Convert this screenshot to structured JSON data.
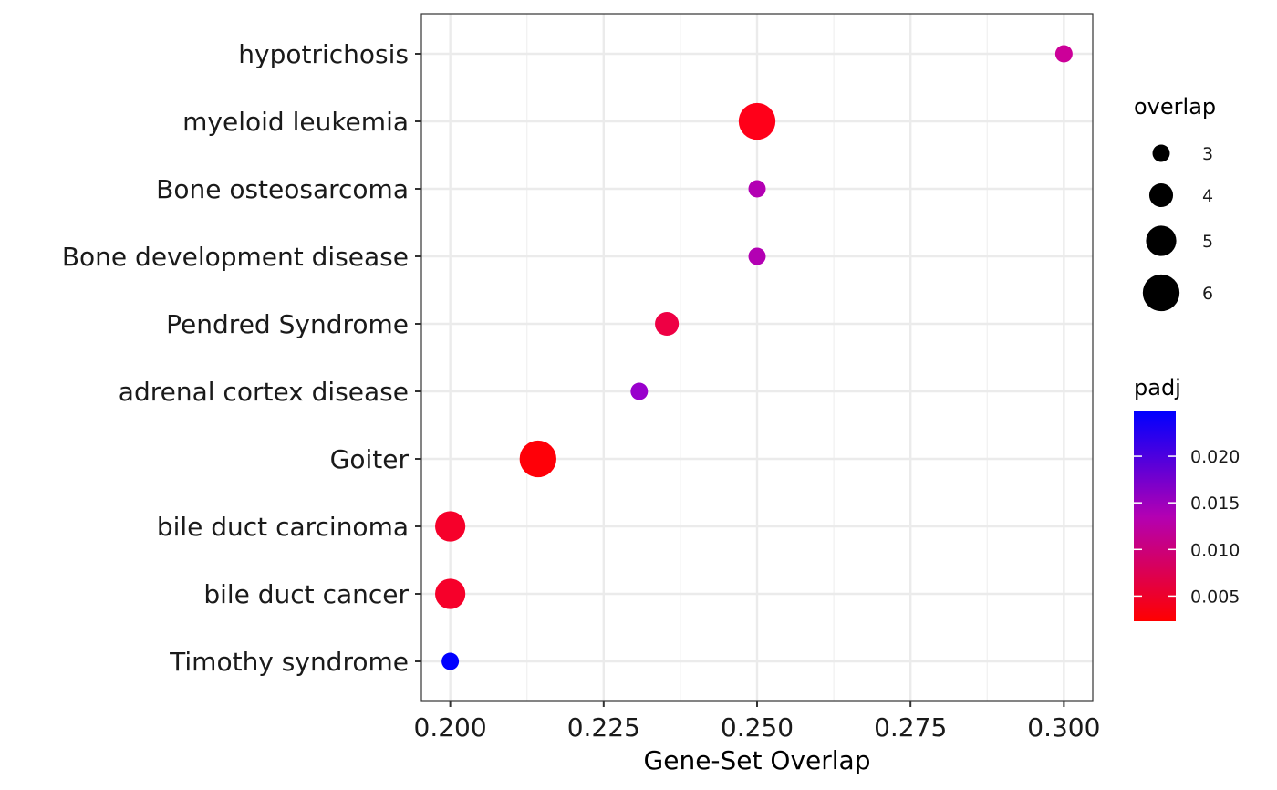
{
  "chart_data": {
    "type": "scatter",
    "xlabel": "Gene-Set Overlap",
    "ylabel": "",
    "xlim": [
      0.1953,
      0.3047
    ],
    "xticks": [
      0.2,
      0.225,
      0.25,
      0.275,
      0.3
    ],
    "xtick_labels": [
      "0.200",
      "0.225",
      "0.250",
      "0.275",
      "0.300"
    ],
    "grid": true,
    "categories": [
      "hypotrichosis",
      "myeloid leukemia",
      "Bone osteosarcoma",
      "Bone development disease",
      "Pendred Syndrome",
      "adrenal cortex disease",
      "Goiter",
      "bile duct carcinoma",
      "bile duct cancer",
      "Timothy syndrome"
    ],
    "points": [
      {
        "term": "hypotrichosis",
        "x": 0.3,
        "overlap": 3,
        "padj": 0.0125,
        "color": "#cc0099"
      },
      {
        "term": "myeloid leukemia",
        "x": 0.25,
        "overlap": 6,
        "padj": 0.0012,
        "color": "#ff0019"
      },
      {
        "term": "Bone osteosarcoma",
        "x": 0.25,
        "overlap": 3,
        "padj": 0.0175,
        "color": "#b300b3"
      },
      {
        "term": "Bone development disease",
        "x": 0.25,
        "overlap": 3,
        "padj": 0.0175,
        "color": "#b300b3"
      },
      {
        "term": "Pendred Syndrome",
        "x": 0.2353,
        "overlap": 4,
        "padj": 0.0045,
        "color": "#ee0044"
      },
      {
        "term": "adrenal cortex disease",
        "x": 0.2308,
        "overlap": 3,
        "padj": 0.0195,
        "color": "#9900cc"
      },
      {
        "term": "Goiter",
        "x": 0.2143,
        "overlap": 6,
        "padj": 0.0008,
        "color": "#ff0008"
      },
      {
        "term": "bile duct carcinoma",
        "x": 0.2,
        "overlap": 5,
        "padj": 0.0025,
        "color": "#f6002a"
      },
      {
        "term": "bile duct cancer",
        "x": 0.2,
        "overlap": 5,
        "padj": 0.0025,
        "color": "#f6002a"
      },
      {
        "term": "Timothy syndrome",
        "x": 0.2,
        "overlap": 3,
        "padj": 0.0245,
        "color": "#0000ff"
      }
    ],
    "size_legend": {
      "title": "overlap",
      "items": [
        {
          "label": "3",
          "value": 3
        },
        {
          "label": "4",
          "value": 4
        },
        {
          "label": "5",
          "value": 5
        },
        {
          "label": "6",
          "value": 6
        }
      ]
    },
    "color_legend": {
      "title": "padj",
      "min": 0.0023,
      "max": 0.0248,
      "low_color": "#ff0000",
      "mid_color": "#b300b3",
      "high_color": "#0000ff",
      "ticks": [
        {
          "label": "0.005",
          "value": 0.005
        },
        {
          "label": "0.010",
          "value": 0.01
        },
        {
          "label": "0.015",
          "value": 0.015
        },
        {
          "label": "0.020",
          "value": 0.02
        }
      ]
    }
  }
}
